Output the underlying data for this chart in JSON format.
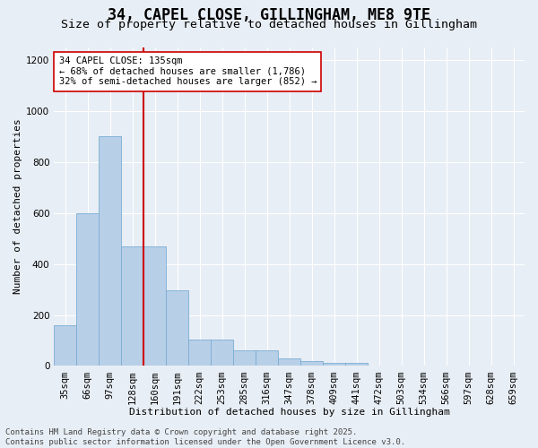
{
  "title_line1": "34, CAPEL CLOSE, GILLINGHAM, ME8 9TE",
  "title_line2": "Size of property relative to detached houses in Gillingham",
  "xlabel": "Distribution of detached houses by size in Gillingham",
  "ylabel": "Number of detached properties",
  "categories": [
    "35sqm",
    "66sqm",
    "97sqm",
    "128sqm",
    "160sqm",
    "191sqm",
    "222sqm",
    "253sqm",
    "285sqm",
    "316sqm",
    "347sqm",
    "378sqm",
    "409sqm",
    "441sqm",
    "472sqm",
    "503sqm",
    "534sqm",
    "566sqm",
    "597sqm",
    "628sqm",
    "659sqm"
  ],
  "values": [
    160,
    600,
    900,
    470,
    470,
    295,
    105,
    105,
    63,
    63,
    28,
    20,
    12,
    12,
    0,
    0,
    0,
    0,
    0,
    0,
    0
  ],
  "bar_color": "#b8cfe8",
  "bar_edge_color": "#7aadd4",
  "vline_color": "#cc0000",
  "annotation_text": "34 CAPEL CLOSE: 135sqm\n← 68% of detached houses are smaller (1,786)\n32% of semi-detached houses are larger (852) →",
  "annotation_box_color": "#ffffff",
  "annotation_box_edge": "#cc0000",
  "ylim": [
    0,
    1250
  ],
  "yticks": [
    0,
    200,
    400,
    600,
    800,
    1000,
    1200
  ],
  "background_color": "#e8eef5",
  "grid_color": "#ffffff",
  "footer_line1": "Contains HM Land Registry data © Crown copyright and database right 2025.",
  "footer_line2": "Contains public sector information licensed under the Open Government Licence v3.0.",
  "title_fontsize": 12,
  "subtitle_fontsize": 9.5,
  "axis_label_fontsize": 8,
  "tick_fontsize": 7.5,
  "annotation_fontsize": 7.5,
  "footer_fontsize": 6.5,
  "vline_bar_index": 3
}
